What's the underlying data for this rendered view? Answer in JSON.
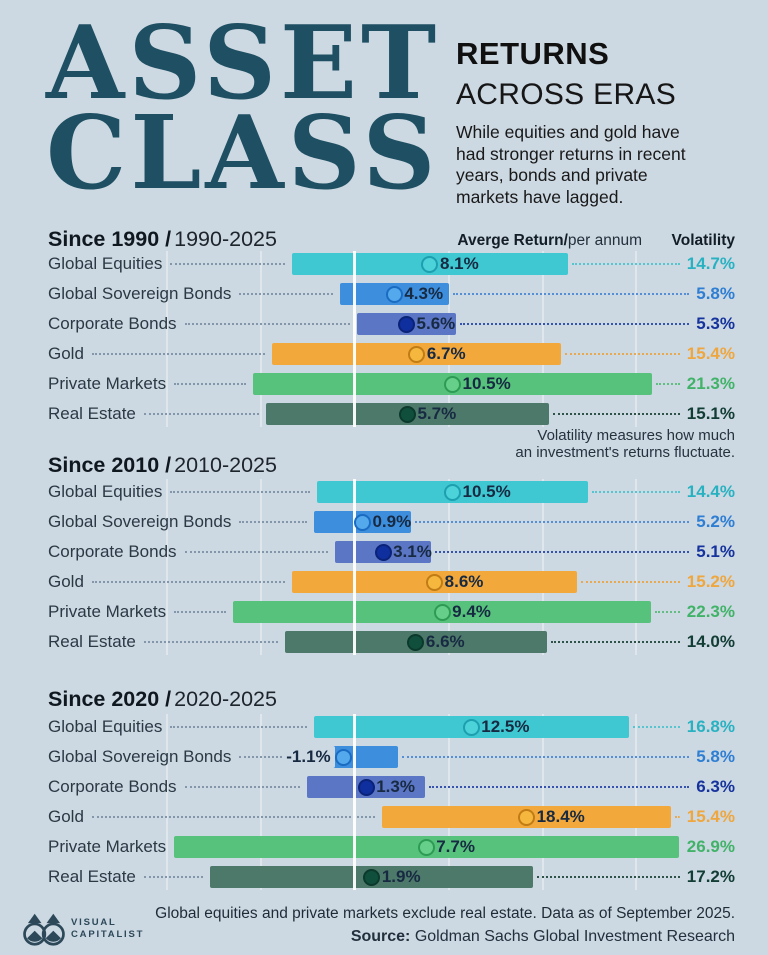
{
  "page": {
    "background": "#ccd8e2",
    "accent_teal": "#1e4f62"
  },
  "header": {
    "title_lines": [
      "ASSET",
      "CLASS"
    ],
    "kicker_bold": "RETURNS",
    "kicker_light": "ACROSS ERAS",
    "description_lines": [
      "While equities and gold have",
      "had stronger returns in recent",
      "years, bonds and private",
      "markets have lagged."
    ]
  },
  "columns": {
    "avg_bold": "Averge Return/",
    "avg_light": "per annum",
    "volatility": "Volatility"
  },
  "volatility_note_lines": [
    "Volatility measures how much",
    "an investment's returns fluctuate."
  ],
  "palette": {
    "equities": {
      "bar": "#3fc8d1",
      "dot_fill": "#4cd2d9",
      "dot_ring": "#1d9fb0",
      "value": "#28b2c1",
      "leader": "#57c5cf"
    },
    "sovereign": {
      "bar": "#3e8ede",
      "dot_fill": "#54a8ec",
      "dot_ring": "#1a6cc2",
      "value": "#2e7ed3",
      "leader": "#568fd6"
    },
    "corporate": {
      "bar": "#5c76c6",
      "dot_fill": "#0f2f9f",
      "dot_ring": "#0a2277",
      "value": "#16339d",
      "leader": "#3653ae"
    },
    "gold": {
      "bar": "#f3a83b",
      "dot_fill": "#f6b73e",
      "dot_ring": "#c07c15",
      "value": "#efa63c",
      "leader": "#e8a94f"
    },
    "private": {
      "bar": "#57c27c",
      "dot_fill": "#66cf8a",
      "dot_ring": "#2e9b54",
      "value": "#41b368",
      "leader": "#62bd80"
    },
    "realestate": {
      "bar": "#4d796a",
      "dot_fill": "#114f3d",
      "dot_ring": "#0b392c",
      "value": "#123d34",
      "leader": "#2f5348"
    }
  },
  "chart_data": {
    "type": "bar",
    "unit": "percent per annum",
    "x_model": "each horizontal bar spans mean_return - volatility to mean_return + volatility; dot marks mean return; white vertical line marks 0%",
    "legend": {
      "avg_return": "Averge Return/per annum",
      "volatility": "Volatility"
    },
    "sections": [
      {
        "title_bold": "Since 1990 /",
        "title_light": "1990-2025",
        "rows": [
          {
            "label": "Global Equities",
            "asset": "equities",
            "return_pct": 8.1,
            "return_label": "8.1%",
            "volatility_pct": 14.7,
            "volatility_label": "14.7%",
            "value_side": "right"
          },
          {
            "label": "Global Sovereign Bonds",
            "asset": "sovereign",
            "return_pct": 4.3,
            "return_label": "4.3%",
            "volatility_pct": 5.8,
            "volatility_label": "5.8%",
            "value_side": "right"
          },
          {
            "label": "Corporate Bonds",
            "asset": "corporate",
            "return_pct": 5.6,
            "return_label": "5.6%",
            "volatility_pct": 5.3,
            "volatility_label": "5.3%",
            "value_side": "right"
          },
          {
            "label": "Gold",
            "asset": "gold",
            "return_pct": 6.7,
            "return_label": "6.7%",
            "volatility_pct": 15.4,
            "volatility_label": "15.4%",
            "value_side": "right"
          },
          {
            "label": "Private Markets",
            "asset": "private",
            "return_pct": 10.5,
            "return_label": "10.5%",
            "volatility_pct": 21.3,
            "volatility_label": "21.3%",
            "value_side": "right"
          },
          {
            "label": "Real Estate",
            "asset": "realestate",
            "return_pct": 5.7,
            "return_label": "5.7%",
            "volatility_pct": 15.1,
            "volatility_label": "15.1%",
            "value_side": "right"
          }
        ]
      },
      {
        "title_bold": "Since 2010 /",
        "title_light": "2010-2025",
        "rows": [
          {
            "label": "Global Equities",
            "asset": "equities",
            "return_pct": 10.5,
            "return_label": "10.5%",
            "volatility_pct": 14.4,
            "volatility_label": "14.4%",
            "value_side": "right"
          },
          {
            "label": "Global Sovereign Bonds",
            "asset": "sovereign",
            "return_pct": 0.9,
            "return_label": "0.9%",
            "volatility_pct": 5.2,
            "volatility_label": "5.2%",
            "value_side": "right"
          },
          {
            "label": "Corporate Bonds",
            "asset": "corporate",
            "return_pct": 3.1,
            "return_label": "3.1%",
            "volatility_pct": 5.1,
            "volatility_label": "5.1%",
            "value_side": "right"
          },
          {
            "label": "Gold",
            "asset": "gold",
            "return_pct": 8.6,
            "return_label": "8.6%",
            "volatility_pct": 15.2,
            "volatility_label": "15.2%",
            "value_side": "right"
          },
          {
            "label": "Private Markets",
            "asset": "private",
            "return_pct": 9.4,
            "return_label": "9.4%",
            "volatility_pct": 22.3,
            "volatility_label": "22.3%",
            "value_side": "right"
          },
          {
            "label": "Real Estate",
            "asset": "realestate",
            "return_pct": 6.6,
            "return_label": "6.6%",
            "volatility_pct": 14.0,
            "volatility_label": "14.0%",
            "value_side": "right"
          }
        ]
      },
      {
        "title_bold": "Since 2020 /",
        "title_light": "2020-2025",
        "rows": [
          {
            "label": "Global Equities",
            "asset": "equities",
            "return_pct": 12.5,
            "return_label": "12.5%",
            "volatility_pct": 16.8,
            "volatility_label": "16.8%",
            "value_side": "right"
          },
          {
            "label": "Global Sovereign Bonds",
            "asset": "sovereign",
            "return_pct": -1.1,
            "return_label": "-1.1%",
            "volatility_pct": 5.8,
            "volatility_label": "5.8%",
            "value_side": "left"
          },
          {
            "label": "Corporate Bonds",
            "asset": "corporate",
            "return_pct": 1.3,
            "return_label": "1.3%",
            "volatility_pct": 6.3,
            "volatility_label": "6.3%",
            "value_side": "right"
          },
          {
            "label": "Gold",
            "asset": "gold",
            "return_pct": 18.4,
            "return_label": "18.4%",
            "volatility_pct": 15.4,
            "volatility_label": "15.4%",
            "value_side": "right"
          },
          {
            "label": "Private Markets",
            "asset": "private",
            "return_pct": 7.7,
            "return_label": "7.7%",
            "volatility_pct": 26.9,
            "volatility_label": "26.9%",
            "value_side": "right"
          },
          {
            "label": "Real Estate",
            "asset": "realestate",
            "return_pct": 1.9,
            "return_label": "1.9%",
            "volatility_pct": 17.2,
            "volatility_label": "17.2%",
            "value_side": "right"
          }
        ]
      }
    ]
  },
  "footer": {
    "note": "Global equities and private markets exclude real estate. Data as of September 2025.",
    "source_bold": "Source:",
    "source_text": " Goldman Sachs Global Investment Research",
    "logo_line1": "VISUAL",
    "logo_line2": "CAPITALIST"
  }
}
